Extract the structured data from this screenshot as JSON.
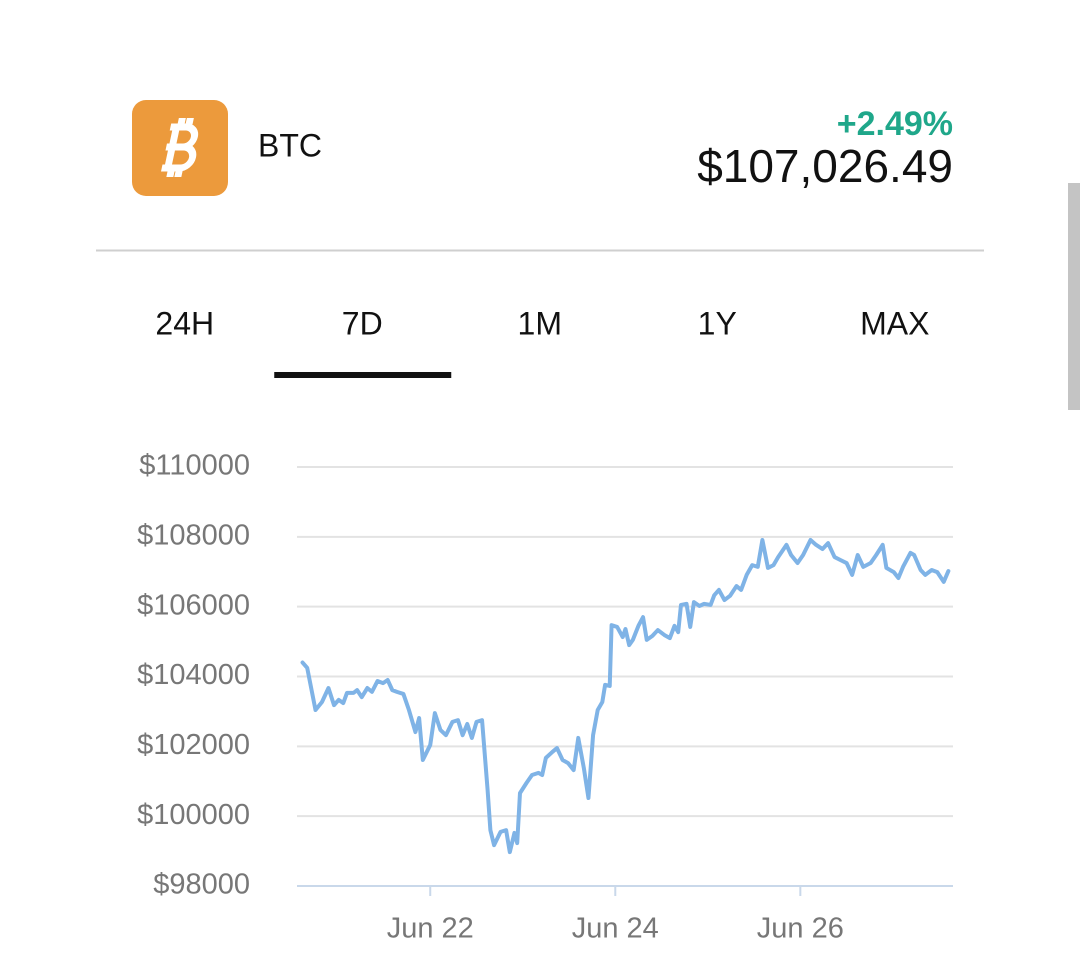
{
  "header": {
    "symbol": "BTC",
    "change": "+2.49%",
    "price": "$107,026.49"
  },
  "tabs": {
    "items": [
      "24H",
      "7D",
      "1M",
      "1Y",
      "MAX"
    ],
    "selected": 1
  },
  "chart_data": {
    "type": "line",
    "x": [
      20.62,
      20.67,
      20.76,
      20.83,
      20.9,
      20.96,
      21.01,
      21.06,
      21.1,
      21.17,
      21.21,
      21.26,
      21.32,
      21.37,
      21.43,
      21.49,
      21.54,
      21.59,
      21.64,
      21.71,
      21.77,
      21.84,
      21.88,
      21.92,
      22.0,
      22.05,
      22.11,
      22.17,
      22.24,
      22.3,
      22.35,
      22.4,
      22.45,
      22.5,
      22.56,
      22.62,
      22.65,
      22.69,
      22.76,
      22.82,
      22.86,
      22.91,
      22.94,
      22.97,
      23.04,
      23.1,
      23.17,
      23.21,
      23.25,
      23.32,
      23.37,
      23.43,
      23.49,
      23.55,
      23.6,
      23.66,
      23.71,
      23.76,
      23.81,
      23.86,
      23.89,
      23.94,
      23.96,
      24.02,
      24.08,
      24.11,
      24.15,
      24.19,
      24.25,
      24.3,
      24.34,
      24.4,
      24.46,
      24.53,
      24.59,
      24.64,
      24.68,
      24.71,
      24.77,
      24.81,
      24.85,
      24.91,
      24.96,
      25.03,
      25.07,
      25.12,
      25.18,
      25.24,
      25.31,
      25.36,
      25.42,
      25.48,
      25.54,
      25.59,
      25.65,
      25.71,
      25.76,
      25.85,
      25.9,
      25.97,
      26.03,
      26.11,
      26.17,
      26.24,
      26.3,
      26.37,
      26.43,
      26.5,
      26.56,
      26.62,
      26.68,
      26.76,
      26.82,
      26.89,
      26.93,
      27.01,
      27.06,
      27.11,
      27.19,
      27.23,
      27.3,
      27.35,
      27.42,
      27.48,
      27.55,
      27.6
    ],
    "series": [
      {
        "name": "BTC",
        "color": "#7fb3e6",
        "values": [
          104400,
          104250,
          103040,
          103270,
          103670,
          103180,
          103330,
          103240,
          103530,
          103530,
          103610,
          103410,
          103670,
          103560,
          103870,
          103810,
          103900,
          103610,
          103560,
          103500,
          103040,
          102410,
          102810,
          101610,
          102040,
          102950,
          102470,
          102320,
          102700,
          102750,
          102320,
          102640,
          102240,
          102700,
          102750,
          100750,
          99600,
          99170,
          99550,
          99600,
          98970,
          99520,
          99230,
          100660,
          100950,
          101180,
          101240,
          101180,
          101670,
          101840,
          101950,
          101610,
          101520,
          101320,
          102240,
          101380,
          100520,
          102320,
          103040,
          103270,
          103760,
          103730,
          105470,
          105420,
          105130,
          105360,
          104900,
          105050,
          105450,
          105700,
          105050,
          105160,
          105330,
          105190,
          105100,
          105450,
          105270,
          106050,
          106080,
          105420,
          106130,
          106020,
          106080,
          106050,
          106330,
          106480,
          106190,
          106310,
          106590,
          106480,
          106910,
          107190,
          107140,
          107910,
          107110,
          107190,
          107420,
          107770,
          107480,
          107250,
          107480,
          107910,
          107770,
          107650,
          107820,
          107420,
          107340,
          107250,
          106910,
          107480,
          107140,
          107250,
          107480,
          107770,
          107110,
          106990,
          106820,
          107140,
          107540,
          107480,
          107050,
          106910,
          107050,
          106990,
          106710,
          107020
        ]
      }
    ],
    "xlim": [
      20.56,
      27.65
    ],
    "xticks": [
      {
        "value": 22,
        "label": "Jun 22"
      },
      {
        "value": 24,
        "label": "Jun 24"
      },
      {
        "value": 26,
        "label": "Jun 26"
      }
    ],
    "ylim": [
      98000,
      110000
    ],
    "yticks": [
      {
        "value": 98000,
        "label": "$98000"
      },
      {
        "value": 100000,
        "label": "$100000"
      },
      {
        "value": 102000,
        "label": "$102000"
      },
      {
        "value": 104000,
        "label": "$104000"
      },
      {
        "value": 106000,
        "label": "$106000"
      },
      {
        "value": 108000,
        "label": "$108000"
      },
      {
        "value": 110000,
        "label": "$110000"
      }
    ],
    "grid": true
  }
}
